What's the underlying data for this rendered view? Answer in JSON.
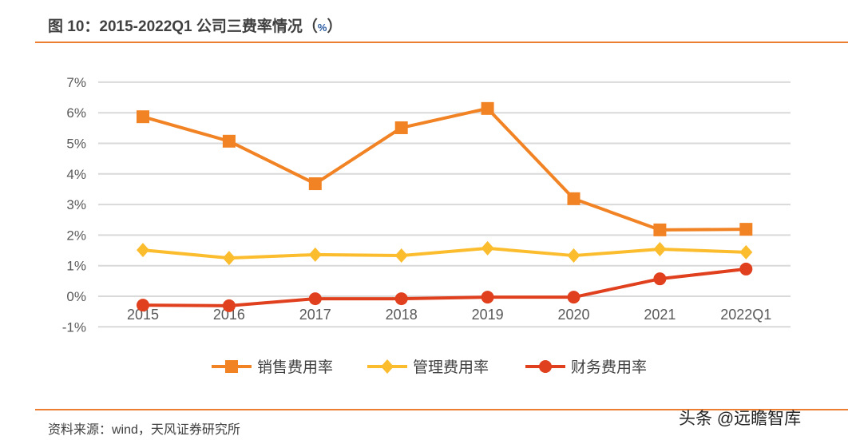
{
  "title": "图 10：2015-2022Q1 公司三费率情况（",
  "title_unit": "%",
  "title_close": "）",
  "source": "资料来源：wind，天风证券研究所",
  "watermark": "头条 @远瞻智库",
  "chart_data": {
    "type": "line",
    "title": "2015-2022Q1 公司三费率情况（%）",
    "categories": [
      "2015",
      "2016",
      "2017",
      "2018",
      "2019",
      "2020",
      "2021",
      "2022Q1"
    ],
    "yticks": [
      "-1%",
      "0%",
      "1%",
      "2%",
      "3%",
      "4%",
      "5%",
      "6%",
      "7%"
    ],
    "ylim": [
      -1,
      7
    ],
    "grid": true,
    "legend_position": "bottom",
    "series": [
      {
        "name": "销售费用率",
        "color": "#f28324",
        "marker": "square",
        "values": [
          5.87,
          5.07,
          3.68,
          5.51,
          6.14,
          3.19,
          2.17,
          2.19
        ]
      },
      {
        "name": "管理费用率",
        "color": "#fbbd2e",
        "marker": "diamond",
        "values": [
          1.51,
          1.25,
          1.36,
          1.33,
          1.57,
          1.33,
          1.54,
          1.44
        ]
      },
      {
        "name": "财务费用率",
        "color": "#e0401e",
        "marker": "circle",
        "values": [
          -0.29,
          -0.31,
          -0.08,
          -0.08,
          -0.03,
          -0.03,
          0.57,
          0.89
        ]
      }
    ]
  }
}
